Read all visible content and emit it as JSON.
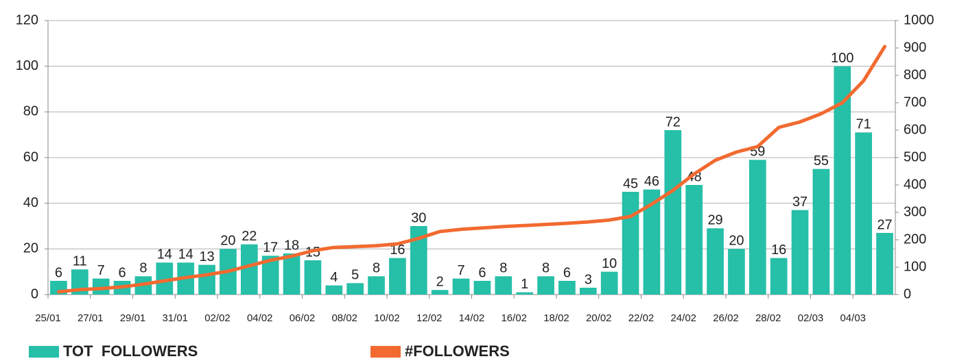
{
  "chart_data": {
    "type": "bar-line",
    "categories": [
      "25/01",
      null,
      "27/01",
      null,
      "29/01",
      null,
      "31/01",
      null,
      "02/02",
      null,
      "04/02",
      null,
      "06/02",
      null,
      "08/02",
      null,
      "10/02",
      null,
      "12/02",
      null,
      "14/02",
      null,
      "16/02",
      null,
      "18/02",
      null,
      "20/02",
      null,
      "22/02",
      null,
      "24/02",
      null,
      "26/02",
      null,
      "28/02",
      null,
      "02/03",
      null,
      "04/03",
      null
    ],
    "series": [
      {
        "name": "TOT  FOLLOWERS",
        "color": "#26bfa8",
        "type": "bar",
        "axis": "y",
        "values": [
          6,
          11,
          7,
          6,
          8,
          14,
          14,
          13,
          20,
          22,
          17,
          18,
          15,
          4,
          5,
          8,
          16,
          30,
          2,
          7,
          6,
          8,
          1,
          8,
          6,
          3,
          10,
          45,
          46,
          72,
          48,
          29,
          20,
          59,
          16,
          37,
          55,
          100,
          71,
          27
        ]
      },
      {
        "name": "#FOLLOWERS",
        "color": "#f26a30",
        "type": "line",
        "axis": "y2",
        "values": [
          10,
          18,
          22,
          28,
          38,
          50,
          62,
          72,
          85,
          105,
          125,
          140,
          160,
          172,
          175,
          178,
          185,
          205,
          230,
          238,
          243,
          248,
          252,
          256,
          260,
          265,
          272,
          285,
          330,
          380,
          440,
          490,
          520,
          540,
          610,
          630,
          660,
          700,
          780,
          905
        ]
      }
    ],
    "ylim": [
      0,
      120
    ],
    "yticks": [
      0,
      20,
      40,
      60,
      80,
      100,
      120
    ],
    "y2lim": [
      0,
      1000
    ],
    "y2ticks": [
      0,
      100,
      200,
      300,
      400,
      500,
      600,
      700,
      800,
      900,
      1000
    ],
    "grid": true,
    "legend": "bottom-left"
  }
}
